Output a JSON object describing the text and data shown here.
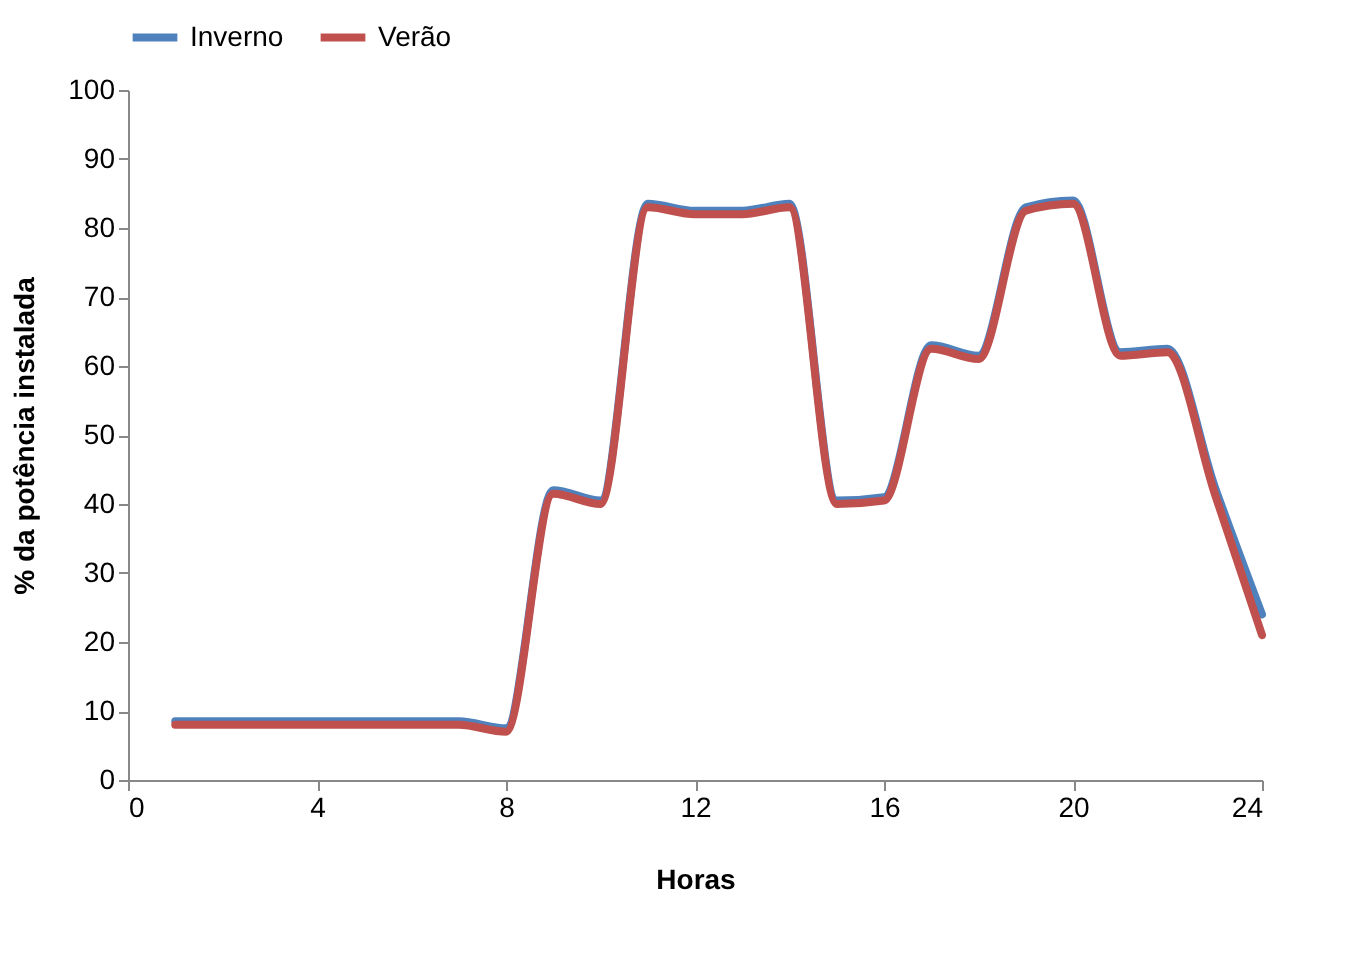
{
  "chart_data": {
    "type": "line",
    "xlabel": "Horas",
    "ylabel": "% da potência  instalada",
    "x": [
      1,
      2,
      3,
      4,
      5,
      6,
      7,
      8,
      9,
      10,
      11,
      12,
      13,
      14,
      15,
      16,
      17,
      18,
      19,
      20,
      21,
      22,
      23,
      24
    ],
    "series": [
      {
        "name": "Inverno",
        "color": "#4f81bd",
        "values": [
          8.5,
          8.5,
          8.5,
          8.5,
          8.5,
          8.5,
          8.5,
          7.5,
          42,
          40.5,
          83.5,
          82.5,
          82.5,
          83.5,
          40.5,
          41,
          63,
          61.5,
          83,
          84,
          62,
          62.5,
          42.5,
          24
        ]
      },
      {
        "name": "Verão",
        "color": "#c0504d",
        "values": [
          8,
          8,
          8,
          8,
          8,
          8,
          8,
          7,
          41.5,
          40,
          83,
          82,
          82,
          83,
          40,
          40.5,
          62.5,
          61,
          82.5,
          83.5,
          61.5,
          62,
          41.5,
          21
        ]
      }
    ],
    "xlim": [
      0,
      24
    ],
    "xticks": [
      0,
      4,
      8,
      12,
      16,
      20,
      24
    ],
    "ylim": [
      0,
      100
    ],
    "yticks": [
      0,
      10,
      20,
      30,
      40,
      50,
      60,
      70,
      80,
      90,
      100
    ],
    "grid": false,
    "legend": "top",
    "marker": "none",
    "line_style": "solid"
  }
}
